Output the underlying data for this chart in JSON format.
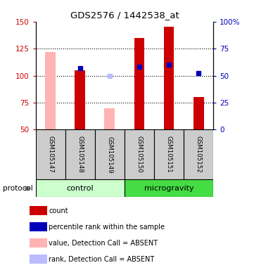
{
  "title": "GDS2576 / 1442538_at",
  "samples": [
    "GSM105147",
    "GSM105148",
    "GSM105149",
    "GSM105150",
    "GSM105151",
    "GSM105152"
  ],
  "groups": [
    "control",
    "control",
    "control",
    "microgravity",
    "microgravity",
    "microgravity"
  ],
  "red_bar_values": [
    null,
    105,
    null,
    135,
    145,
    80
  ],
  "pink_bar_values": [
    122,
    null,
    70,
    null,
    null,
    null
  ],
  "blue_square_values": [
    null,
    57,
    null,
    58,
    60,
    52
  ],
  "light_blue_square_values": [
    null,
    null,
    50,
    null,
    null,
    null
  ],
  "ylim_left": [
    50,
    150
  ],
  "ylim_right": [
    0,
    100
  ],
  "yticks_left": [
    50,
    75,
    100,
    125,
    150
  ],
  "yticks_right": [
    0,
    25,
    50,
    75,
    100
  ],
  "ytick_right_labels": [
    "0",
    "25",
    "50",
    "75",
    "100%"
  ],
  "bar_width": 0.35,
  "red_color": "#cc0000",
  "pink_color": "#ffb3b3",
  "blue_color": "#0000bb",
  "light_blue_color": "#bbbbff",
  "control_bg": "#ccffcc",
  "microgravity_bg": "#44dd44",
  "sample_box_bg": "#cccccc",
  "left_axis_color": "#cc0000",
  "right_axis_color": "#0000bb",
  "legend_items": [
    {
      "color": "#cc0000",
      "label": "count"
    },
    {
      "color": "#0000bb",
      "label": "percentile rank within the sample"
    },
    {
      "color": "#ffb3b3",
      "label": "value, Detection Call = ABSENT"
    },
    {
      "color": "#bbbbff",
      "label": "rank, Detection Call = ABSENT"
    }
  ],
  "gridline_y": [
    75,
    100,
    125
  ]
}
